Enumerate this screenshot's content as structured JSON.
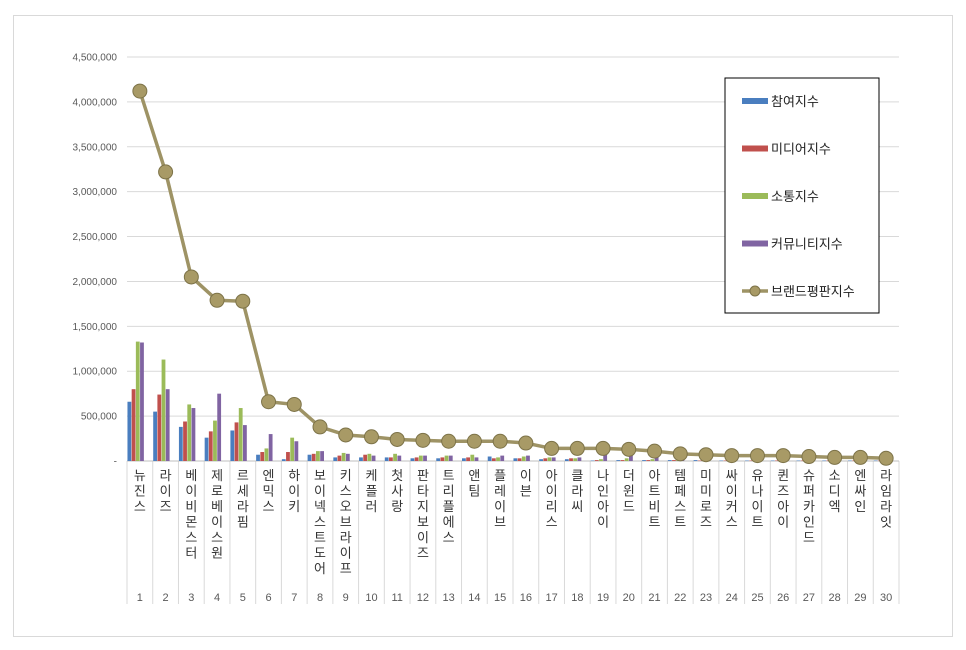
{
  "chart_data": {
    "type": "bar",
    "title": "",
    "xlabel": "",
    "ylabel": "",
    "ylim": [
      0,
      4500000
    ],
    "yticks": [
      0,
      500000,
      1000000,
      1500000,
      2000000,
      2500000,
      3000000,
      3500000,
      4000000,
      4500000
    ],
    "ytick_labels": [
      "-",
      "500,000",
      "1,000,000",
      "1,500,000",
      "2,000,000",
      "2,500,000",
      "3,000,000",
      "3,500,000",
      "4,000,000",
      "4,500,000"
    ],
    "grid": true,
    "legend_position": "top-right",
    "ranks": [
      "1",
      "2",
      "3",
      "4",
      "5",
      "6",
      "7",
      "8",
      "9",
      "10",
      "11",
      "12",
      "13",
      "14",
      "15",
      "16",
      "17",
      "18",
      "19",
      "20",
      "21",
      "22",
      "23",
      "24",
      "25",
      "26",
      "27",
      "28",
      "29",
      "30"
    ],
    "categories": [
      "뉴진스",
      "라이즈",
      "베이비몬스터",
      "제로베이스원",
      "르세라핌",
      "엔믹스",
      "하이키",
      "보이넥스트도어",
      "키스오브라이프",
      "케플러",
      "첫사랑",
      "판타지보이즈",
      "트리플에스",
      "앤팀",
      "플레이브",
      "이븐",
      "아이리스",
      "클라씨",
      "나인아이",
      "더윈드",
      "아트비트",
      "템페스트",
      "미미로즈",
      "싸이커스",
      "유나이트",
      "퀸즈아이",
      "슈퍼카인드",
      "소디엑",
      "엔싸인",
      "라임라잇"
    ],
    "series": [
      {
        "name": "참여지수",
        "kind": "bar",
        "color": "#4a7ebf",
        "values": [
          660000,
          550000,
          380000,
          260000,
          340000,
          70000,
          20000,
          70000,
          40000,
          40000,
          40000,
          30000,
          30000,
          30000,
          50000,
          30000,
          20000,
          20000,
          5000,
          10000,
          10000,
          10000,
          10000,
          5000,
          5000,
          5000,
          5000,
          5000,
          5000,
          5000
        ]
      },
      {
        "name": "미디어지수",
        "kind": "bar",
        "color": "#c0504d",
        "values": [
          800000,
          740000,
          440000,
          330000,
          430000,
          100000,
          100000,
          80000,
          60000,
          70000,
          40000,
          40000,
          40000,
          40000,
          30000,
          30000,
          30000,
          30000,
          10000,
          10000,
          10000,
          10000,
          5000,
          5000,
          5000,
          5000,
          5000,
          5000,
          5000,
          5000
        ]
      },
      {
        "name": "소통지수",
        "kind": "bar",
        "color": "#9bbb59",
        "values": [
          1330000,
          1130000,
          630000,
          450000,
          590000,
          140000,
          260000,
          110000,
          90000,
          80000,
          80000,
          60000,
          60000,
          70000,
          40000,
          50000,
          40000,
          30000,
          20000,
          30000,
          20000,
          20000,
          10000,
          10000,
          10000,
          10000,
          10000,
          10000,
          10000,
          10000
        ]
      },
      {
        "name": "커뮤니티지수",
        "kind": "bar",
        "color": "#8064a2",
        "values": [
          1320000,
          800000,
          590000,
          750000,
          400000,
          300000,
          220000,
          110000,
          80000,
          60000,
          60000,
          60000,
          60000,
          40000,
          60000,
          60000,
          40000,
          40000,
          80000,
          70000,
          50000,
          30000,
          30000,
          20000,
          30000,
          20000,
          20000,
          10000,
          10000,
          10000
        ]
      },
      {
        "name": "브랜드평판지수",
        "kind": "line",
        "color": "#9e9365",
        "values": [
          4120000,
          3220000,
          2050000,
          1790000,
          1780000,
          660000,
          630000,
          380000,
          290000,
          270000,
          240000,
          230000,
          220000,
          220000,
          220000,
          200000,
          140000,
          140000,
          140000,
          130000,
          110000,
          80000,
          70000,
          60000,
          60000,
          60000,
          50000,
          40000,
          40000,
          30000
        ]
      }
    ]
  }
}
